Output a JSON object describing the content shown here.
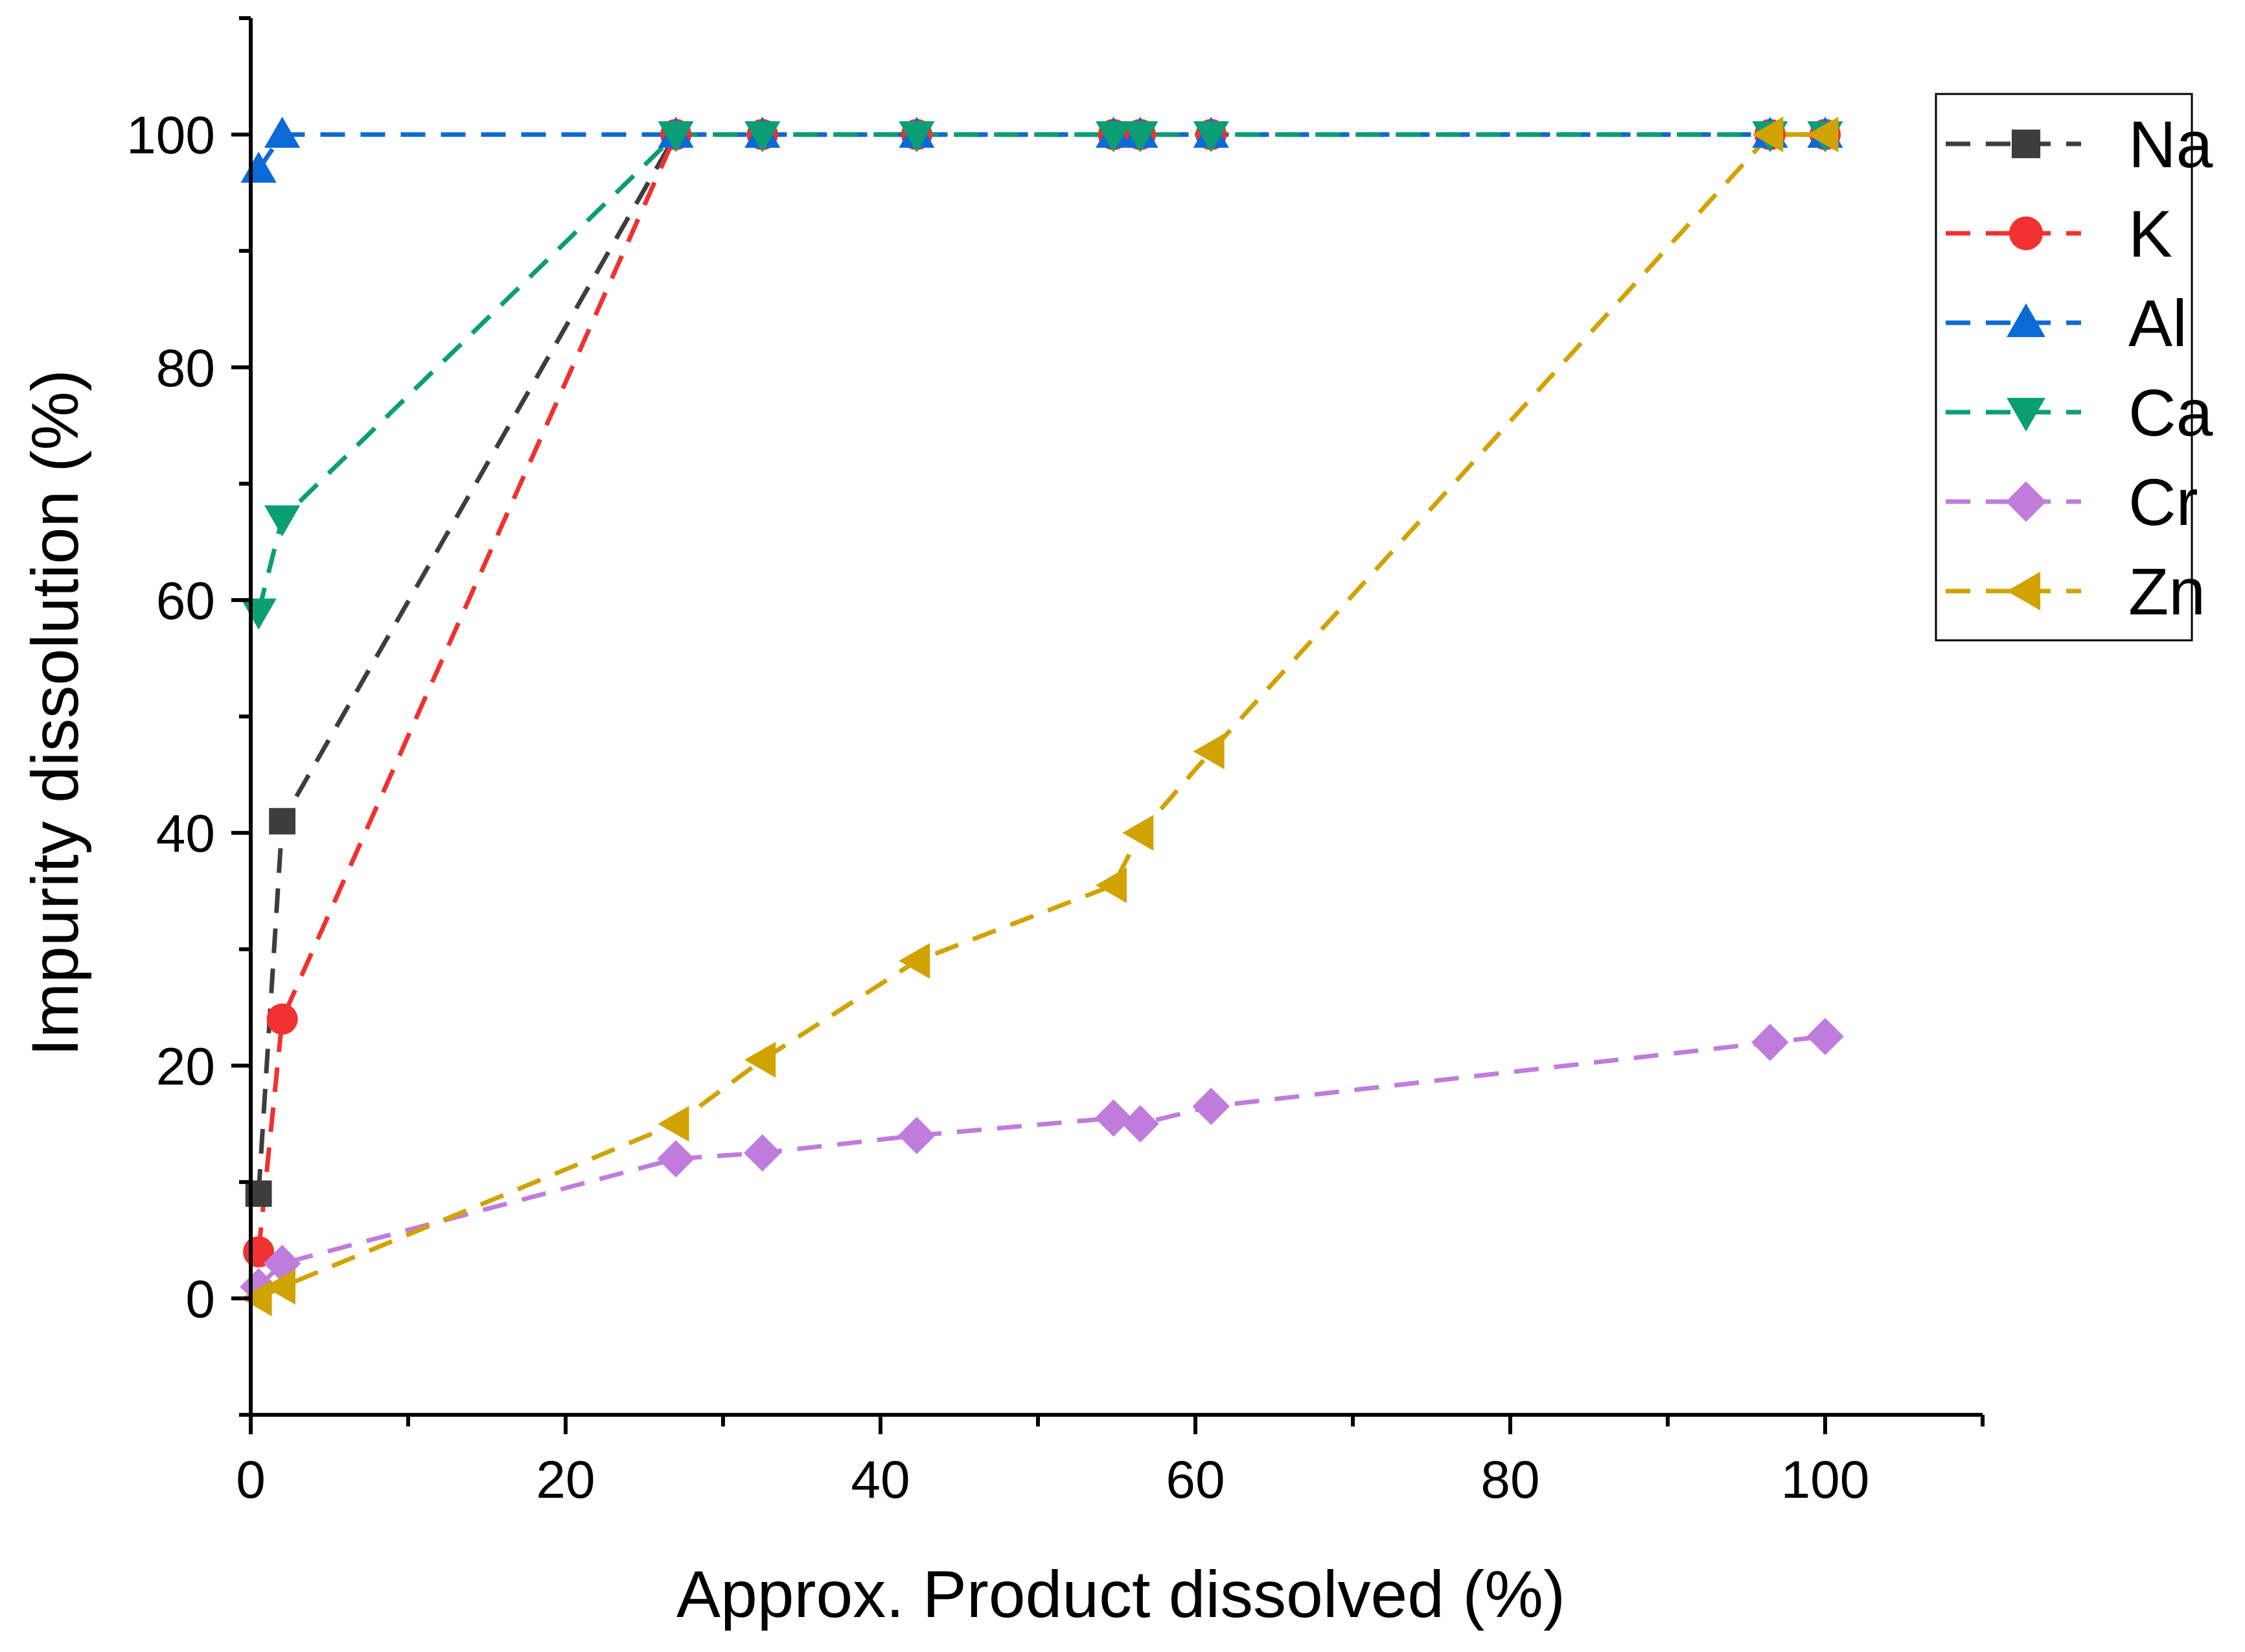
{
  "chart_data": {
    "type": "line",
    "title": "",
    "xlabel": "Approx. Product dissolved (%)",
    "ylabel": "Impurity dissolution (%)",
    "xlim": [
      0,
      110
    ],
    "ylim": [
      -10,
      110
    ],
    "xticks": [
      0,
      20,
      40,
      60,
      80,
      100
    ],
    "yticks": [
      0,
      20,
      40,
      60,
      80,
      100
    ],
    "x_tick_labels": [
      "0",
      "20",
      "40",
      "60",
      "80",
      "100"
    ],
    "y_tick_labels": [
      "0",
      "20",
      "40",
      "60",
      "80",
      "100"
    ],
    "grid": false,
    "legend_position": "top-right",
    "line_style": "dashed",
    "series": [
      {
        "name": "Na",
        "color": "#3d3d3d",
        "marker": "square",
        "x": [
          0.5,
          2,
          27,
          32.5,
          42.3,
          54.8,
          56.5,
          61,
          96.5,
          100
        ],
        "y": [
          9,
          41,
          100,
          100,
          100,
          100,
          100,
          100,
          100,
          100
        ]
      },
      {
        "name": "K",
        "color": "#f0312f",
        "marker": "circle",
        "x": [
          0.5,
          2,
          27,
          32.5,
          42.3,
          54.8,
          56.5,
          61,
          96.5,
          100
        ],
        "y": [
          4,
          24,
          100,
          100,
          100,
          100,
          100,
          100,
          100,
          100
        ]
      },
      {
        "name": "Al",
        "color": "#0b6ad6",
        "marker": "triangle-up",
        "x": [
          0.5,
          2,
          27,
          32.5,
          42.3,
          54.8,
          56.5,
          61,
          96.5,
          100
        ],
        "y": [
          97,
          100,
          100,
          100,
          100,
          100,
          100,
          100,
          100,
          100
        ]
      },
      {
        "name": "Ca",
        "color": "#0a9e74",
        "marker": "triangle-down",
        "x": [
          0.5,
          2,
          27,
          32.5,
          42.3,
          54.8,
          56.5,
          61,
          96.5,
          100
        ],
        "y": [
          59,
          67,
          100,
          100,
          100,
          100,
          100,
          100,
          100,
          100
        ]
      },
      {
        "name": "Cr",
        "color": "#c07cdc",
        "marker": "diamond",
        "x": [
          0.5,
          2,
          27,
          32.5,
          42.3,
          54.8,
          56.5,
          61,
          96.5,
          100
        ],
        "y": [
          1,
          3,
          12,
          12.5,
          14,
          15.5,
          15,
          16.5,
          22,
          22.5
        ]
      },
      {
        "name": "Zn",
        "color": "#d1a300",
        "marker": "triangle-left",
        "x": [
          0.5,
          2,
          27,
          32.5,
          42.3,
          54.8,
          56.5,
          61,
          96.5,
          100
        ],
        "y": [
          0,
          1,
          15,
          20.5,
          29,
          35.5,
          40,
          47,
          100,
          100
        ]
      }
    ]
  }
}
